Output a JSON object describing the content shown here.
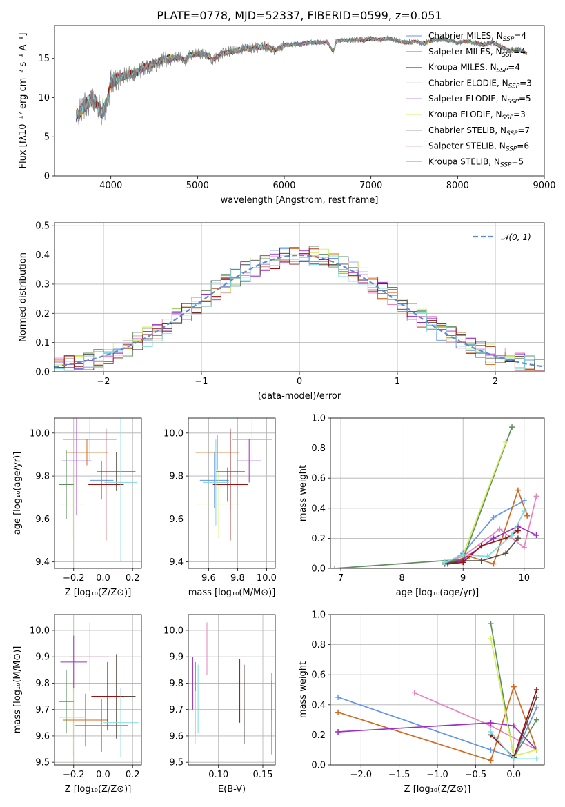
{
  "figure": {
    "title": "PLATE=0778, MJD=52337, FIBERID=0599, z=0.051"
  },
  "chart_data": [
    {
      "type": "line",
      "panel": "spectrum",
      "xlabel": "wavelength [Angstrom, rest frame]",
      "ylabel": "Flux [fλ10⁻¹⁷ erg cm⁻² s⁻¹ A⁻¹]",
      "xlim": [
        3350,
        9000
      ],
      "ylim": [
        0,
        19.2
      ],
      "xticks": [
        4000,
        5000,
        6000,
        7000,
        8000,
        9000
      ],
      "yticks": [
        0,
        5,
        10,
        15
      ],
      "grid": false,
      "legend_position": "right",
      "observed": {
        "color": "#808080",
        "x": [
          3600,
          3700,
          3800,
          3900,
          3960,
          4000,
          4100,
          4200,
          4300,
          4400,
          4500,
          4600,
          4700,
          4800,
          4861,
          4900,
          5000,
          5100,
          5175,
          5300,
          5400,
          5500,
          5600,
          5700,
          5800,
          5893,
          6000,
          6100,
          6200,
          6300,
          6400,
          6500,
          6563,
          6600,
          6700,
          6800,
          6900,
          7000,
          7100,
          7200,
          7300,
          7400,
          7500,
          7600,
          7700,
          7800,
          7900,
          8000,
          8100,
          8200,
          8300,
          8400,
          8500,
          8600,
          8700,
          8800
        ],
        "y": [
          7.5,
          9.0,
          10.0,
          8.0,
          9.5,
          12.0,
          12.5,
          13.0,
          13.2,
          14.0,
          14.3,
          14.8,
          15.0,
          15.2,
          14.5,
          15.4,
          15.6,
          15.5,
          14.8,
          15.7,
          15.9,
          16.2,
          16.3,
          16.4,
          16.5,
          16.0,
          16.7,
          16.8,
          16.9,
          17.0,
          17.0,
          17.1,
          15.8,
          17.2,
          17.3,
          17.4,
          17.3,
          17.5,
          17.4,
          17.6,
          17.3,
          17.0,
          17.2,
          16.9,
          17.3,
          17.4,
          17.3,
          17.0,
          17.2,
          17.0,
          16.7,
          17.1,
          16.5,
          16.0,
          16.2,
          15.6
        ]
      },
      "series": [
        {
          "name": "Chabrier MILES",
          "nssp": "4",
          "color": "#6495ED"
        },
        {
          "name": "Salpeter MILES",
          "nssp": "4",
          "color": "#E882C0"
        },
        {
          "name": "Kroupa MILES",
          "nssp": "4",
          "color": "#D2691E"
        },
        {
          "name": "Chabrier ELODIE",
          "nssp": "3",
          "color": "#5F8F5F"
        },
        {
          "name": "Salpeter ELODIE",
          "nssp": "5",
          "color": "#9B30C2"
        },
        {
          "name": "Kroupa ELODIE",
          "nssp": "3",
          "color": "#D4F060"
        },
        {
          "name": "Chabrier STELIB",
          "nssp": "7",
          "color": "#5A4A42"
        },
        {
          "name": "Salpeter STELIB",
          "nssp": "6",
          "color": "#9B1010"
        },
        {
          "name": "Kroupa STELIB",
          "nssp": "5",
          "color": "#7FDBE0"
        }
      ]
    },
    {
      "type": "step",
      "panel": "residuals",
      "xlabel": "(data-model)/error",
      "ylabel": "Normed distribution",
      "xlim": [
        -2.5,
        2.5
      ],
      "ylim": [
        0,
        0.51
      ],
      "xticks": [
        -2,
        -1,
        0,
        1,
        2
      ],
      "yticks": [
        0.0,
        0.1,
        0.2,
        0.3,
        0.4,
        0.5
      ],
      "grid": true,
      "legend_position": "upper right",
      "normal_curve": {
        "label": "𝒩(0, 1)",
        "color": "#5B8BD8",
        "mu": 0,
        "sigma": 1
      },
      "bin_width": 0.1,
      "bin_start": -2.5
    },
    {
      "type": "errorbar",
      "panel": "age_vs_Z",
      "xlabel": "Z [log₁₀(Z/Z⊙)]",
      "ylabel": "age  [log₁₀(age/yr)]",
      "xlim": [
        -0.33,
        0.26
      ],
      "ylim": [
        9.37,
        10.07
      ],
      "xticks": [
        -0.2,
        0.0,
        0.2
      ],
      "yticks": [
        9.4,
        9.6,
        9.8,
        10.0
      ],
      "grid": true,
      "points": [
        {
          "series": "Chabrier MILES",
          "x": -0.01,
          "y": 9.78,
          "xerr": 0.08,
          "yerr": 0.09
        },
        {
          "series": "Salpeter MILES",
          "x": -0.09,
          "y": 9.97,
          "xerr": 0.18,
          "yerr": 0.1
        },
        {
          "series": "Kroupa MILES",
          "x": -0.11,
          "y": 9.91,
          "xerr": 0.14,
          "yerr": 0.06
        },
        {
          "series": "Chabrier ELODIE",
          "x": -0.25,
          "y": 9.76,
          "xerr": 0.05,
          "yerr": 0.16
        },
        {
          "series": "Salpeter ELODIE",
          "x": -0.18,
          "y": 9.87,
          "xerr": 0.1,
          "yerr": 0.25
        },
        {
          "series": "Kroupa ELODIE",
          "x": -0.21,
          "y": 9.67,
          "xerr": 0.08,
          "yerr": 0.16
        },
        {
          "series": "Chabrier STELIB",
          "x": 0.09,
          "y": 9.82,
          "xerr": 0.13,
          "yerr": 0.09
        },
        {
          "series": "Salpeter STELIB",
          "x": 0.02,
          "y": 9.76,
          "xerr": 0.12,
          "yerr": 0.26
        },
        {
          "series": "Kroupa STELIB",
          "x": 0.12,
          "y": 9.77,
          "xerr": 0.11,
          "yerr": 0.37
        }
      ]
    },
    {
      "type": "errorbar",
      "panel": "age_vs_mass",
      "xlabel": "mass [log₁₀(M/M⊙)]",
      "ylabel": "",
      "xlim": [
        9.46,
        10.06
      ],
      "ylim": [
        9.37,
        10.07
      ],
      "xticks": [
        9.6,
        9.8,
        10.0
      ],
      "yticks": [
        9.4,
        9.6,
        9.8,
        10.0
      ],
      "grid": true,
      "points": [
        {
          "series": "Chabrier MILES",
          "x": 9.64,
          "y": 9.78,
          "xerr": 0.1,
          "yerr": 0.13
        },
        {
          "series": "Salpeter MILES",
          "x": 9.9,
          "y": 9.97,
          "xerr": 0.14,
          "yerr": 0.09
        },
        {
          "series": "Kroupa MILES",
          "x": 9.66,
          "y": 9.91,
          "xerr": 0.15,
          "yerr": 0.08
        },
        {
          "series": "Chabrier ELODIE",
          "x": 9.73,
          "y": 9.76,
          "xerr": 0.09,
          "yerr": 0.08
        },
        {
          "series": "Salpeter ELODIE",
          "x": 9.88,
          "y": 9.87,
          "xerr": 0.08,
          "yerr": 0.1
        },
        {
          "series": "Kroupa ELODIE",
          "x": 9.67,
          "y": 9.67,
          "xerr": 0.15,
          "yerr": 0.16
        },
        {
          "series": "Chabrier STELIB",
          "x": 9.75,
          "y": 9.82,
          "xerr": 0.1,
          "yerr": 0.18
        },
        {
          "series": "Salpeter STELIB",
          "x": 9.75,
          "y": 9.76,
          "xerr": 0.12,
          "yerr": 0.26
        },
        {
          "series": "Kroupa STELIB",
          "x": 9.65,
          "y": 9.77,
          "xerr": 0.09,
          "yerr": 0.2
        }
      ]
    },
    {
      "type": "line",
      "panel": "mass_weight_vs_age",
      "xlabel": "age  [log₁₀(age/yr)]",
      "ylabel": "mass weight",
      "xlim": [
        6.83,
        10.33
      ],
      "ylim": [
        0,
        1.0
      ],
      "xticks": [
        7,
        8,
        9,
        10
      ],
      "yticks": [
        0.0,
        0.2,
        0.4,
        0.6,
        0.8,
        1.0
      ],
      "grid": true,
      "series": [
        {
          "series": "Chabrier MILES",
          "x": [
            8.7,
            9.0,
            9.5,
            10.0
          ],
          "y": [
            0.03,
            0.1,
            0.34,
            0.45
          ]
        },
        {
          "series": "Salpeter MILES",
          "x": [
            8.7,
            9.0,
            9.6,
            10.0,
            10.2
          ],
          "y": [
            0.04,
            0.08,
            0.26,
            0.14,
            0.48
          ]
        },
        {
          "series": "Kroupa MILES",
          "x": [
            8.7,
            9.1,
            9.5,
            9.9,
            10.05
          ],
          "y": [
            0.03,
            0.08,
            0.03,
            0.52,
            0.35
          ]
        },
        {
          "series": "Chabrier ELODIE",
          "x": [
            6.9,
            9.0,
            9.8
          ],
          "y": [
            0.0,
            0.06,
            0.94
          ]
        },
        {
          "series": "Salpeter ELODIE",
          "x": [
            8.7,
            9.0,
            9.5,
            9.9,
            10.2
          ],
          "y": [
            0.03,
            0.06,
            0.2,
            0.28,
            0.22
          ]
        },
        {
          "series": "Kroupa ELODIE",
          "x": [
            8.7,
            9.0,
            9.7
          ],
          "y": [
            0.04,
            0.09,
            0.84
          ]
        },
        {
          "series": "Chabrier STELIB",
          "x": [
            8.7,
            9.0,
            9.3,
            9.7,
            9.9
          ],
          "y": [
            0.03,
            0.05,
            0.05,
            0.1,
            0.2
          ]
        },
        {
          "series": "Salpeter STELIB",
          "x": [
            8.75,
            9.0,
            9.3,
            9.7,
            9.9
          ],
          "y": [
            0.03,
            0.04,
            0.15,
            0.2,
            0.25
          ]
        },
        {
          "series": "Kroupa STELIB",
          "x": [
            8.7,
            9.0,
            9.4,
            9.8,
            10.0
          ],
          "y": [
            0.04,
            0.09,
            0.08,
            0.22,
            0.38
          ]
        }
      ]
    },
    {
      "type": "errorbar",
      "panel": "mass_vs_Z",
      "xlabel": "Z [log₁₀(Z/Z⊙)]",
      "ylabel": "mass [log₁₀(M/M⊙)]",
      "xlim": [
        -0.33,
        0.26
      ],
      "ylim": [
        9.49,
        10.06
      ],
      "xticks": [
        -0.2,
        0.0,
        0.2
      ],
      "yticks": [
        9.5,
        9.6,
        9.7,
        9.8,
        9.9,
        10.0
      ],
      "grid": true,
      "points": [
        {
          "series": "Chabrier MILES",
          "x": -0.01,
          "y": 9.64,
          "xerr": 0.18,
          "yerr": 0.1
        },
        {
          "series": "Salpeter MILES",
          "x": -0.09,
          "y": 9.9,
          "xerr": 0.13,
          "yerr": 0.13
        },
        {
          "series": "Kroupa MILES",
          "x": -0.12,
          "y": 9.66,
          "xerr": 0.15,
          "yerr": 0.1
        },
        {
          "series": "Chabrier ELODIE",
          "x": -0.25,
          "y": 9.73,
          "xerr": 0.05,
          "yerr": 0.12
        },
        {
          "series": "Salpeter ELODIE",
          "x": -0.2,
          "y": 9.88,
          "xerr": 0.09,
          "yerr": 0.1
        },
        {
          "series": "Kroupa ELODIE",
          "x": -0.21,
          "y": 9.67,
          "xerr": 0.09,
          "yerr": 0.15
        },
        {
          "series": "Chabrier STELIB",
          "x": 0.09,
          "y": 9.75,
          "xerr": 0.13,
          "yerr": 0.16
        },
        {
          "series": "Salpeter STELIB",
          "x": 0.03,
          "y": 9.75,
          "xerr": 0.11,
          "yerr": 0.13
        },
        {
          "series": "Kroupa STELIB",
          "x": 0.12,
          "y": 9.65,
          "xerr": 0.12,
          "yerr": 0.13
        }
      ]
    },
    {
      "type": "errorbar",
      "panel": "mass_vs_ebv",
      "xlabel": "E(B-V)",
      "ylabel": "",
      "xlim": [
        0.066,
        0.164
      ],
      "ylim": [
        9.49,
        10.06
      ],
      "xticks": [
        0.1,
        0.15
      ],
      "yticks": [
        9.5,
        9.6,
        9.7,
        9.8,
        9.9,
        10.0
      ],
      "grid": true,
      "points": [
        {
          "series": "Chabrier MILES",
          "x": 0.16,
          "y": 9.75,
          "xerr": 0.0,
          "yerr": 0.09
        },
        {
          "series": "Salpeter MILES",
          "x": 0.087,
          "y": 9.93,
          "xerr": 0.0,
          "yerr": 0.1
        },
        {
          "series": "Kroupa MILES",
          "x": 0.16,
          "y": 9.67,
          "xerr": 0.0,
          "yerr": 0.14
        },
        {
          "series": "Chabrier ELODIE",
          "x": 0.074,
          "y": 9.74,
          "xerr": 0.0,
          "yerr": 0.14
        },
        {
          "series": "Salpeter ELODIE",
          "x": 0.071,
          "y": 9.8,
          "xerr": 0.0,
          "yerr": 0.1
        },
        {
          "series": "Kroupa ELODIE",
          "x": 0.074,
          "y": 9.67,
          "xerr": 0.0,
          "yerr": 0.1
        },
        {
          "series": "Chabrier STELIB",
          "x": 0.129,
          "y": 9.72,
          "xerr": 0.0,
          "yerr": 0.15
        },
        {
          "series": "Salpeter STELIB",
          "x": 0.124,
          "y": 9.77,
          "xerr": 0.0,
          "yerr": 0.12
        },
        {
          "series": "Kroupa STELIB",
          "x": 0.077,
          "y": 9.74,
          "xerr": 0.0,
          "yerr": 0.13
        }
      ]
    },
    {
      "type": "line",
      "panel": "mass_weight_vs_Z",
      "xlabel": "Z [log₁₀(Z/Z⊙)]",
      "ylabel": "mass weight",
      "xlim": [
        -2.4,
        0.4
      ],
      "ylim": [
        0,
        1.0
      ],
      "xticks": [
        -2.0,
        -1.5,
        -1.0,
        -0.5,
        0.0
      ],
      "yticks": [
        0.0,
        0.2,
        0.4,
        0.6,
        0.8,
        1.0
      ],
      "grid": true,
      "series": [
        {
          "series": "Chabrier MILES",
          "x": [
            -2.3,
            -0.3,
            0.0,
            0.3
          ],
          "y": [
            0.45,
            0.1,
            0.05,
            0.38
          ]
        },
        {
          "series": "Salpeter MILES",
          "x": [
            -1.3,
            -0.3,
            0.3
          ],
          "y": [
            0.48,
            0.26,
            0.1
          ]
        },
        {
          "series": "Kroupa MILES",
          "x": [
            -2.3,
            -0.3,
            0.0,
            0.3
          ],
          "y": [
            0.35,
            0.03,
            0.52,
            0.1
          ]
        },
        {
          "series": "Chabrier ELODIE",
          "x": [
            -0.3,
            0.0,
            0.3
          ],
          "y": [
            0.94,
            0.05,
            0.3
          ]
        },
        {
          "series": "Salpeter ELODIE",
          "x": [
            -2.3,
            -0.3,
            0.0,
            0.3
          ],
          "y": [
            0.22,
            0.28,
            0.26,
            0.1
          ]
        },
        {
          "series": "Kroupa ELODIE",
          "x": [
            -0.3,
            0.0,
            0.3
          ],
          "y": [
            0.84,
            0.06,
            0.1
          ]
        },
        {
          "series": "Chabrier STELIB",
          "x": [
            -0.3,
            0.0,
            0.3
          ],
          "y": [
            0.2,
            0.05,
            0.45
          ]
        },
        {
          "series": "Salpeter STELIB",
          "x": [
            -0.3,
            0.0,
            0.3
          ],
          "y": [
            0.2,
            0.05,
            0.5
          ]
        },
        {
          "series": "Kroupa STELIB",
          "x": [
            -0.3,
            0.0,
            0.3
          ],
          "y": [
            0.22,
            0.04,
            0.04
          ]
        }
      ]
    }
  ]
}
